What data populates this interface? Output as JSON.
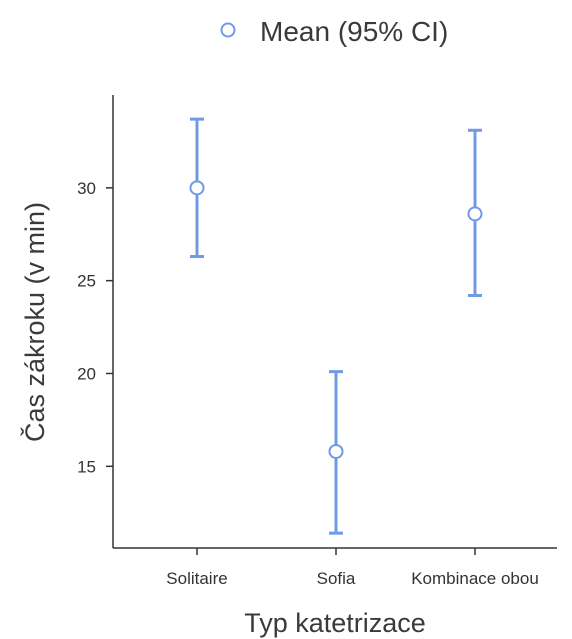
{
  "chart_data": {
    "type": "scatter",
    "subtype": "errorbar",
    "title": "",
    "legend": {
      "label": "Mean (95% CI)",
      "position": "top"
    },
    "xlabel": "Typ katetrizace",
    "ylabel": "Čas zákroku (v min)",
    "categories": [
      "Solitaire",
      "Sofia",
      "Kombinace obou"
    ],
    "series": [
      {
        "name": "Mean (95% CI)",
        "mean": [
          30.0,
          15.8,
          28.6
        ],
        "ci_lower": [
          26.3,
          11.4,
          24.2
        ],
        "ci_upper": [
          33.7,
          20.1,
          33.1
        ]
      }
    ],
    "yticks": [
      15,
      20,
      25,
      30
    ],
    "ylim": [
      10.6,
      35
    ],
    "grid": false,
    "colors": {
      "series": "#6f9be6",
      "axis": "#333333"
    }
  }
}
